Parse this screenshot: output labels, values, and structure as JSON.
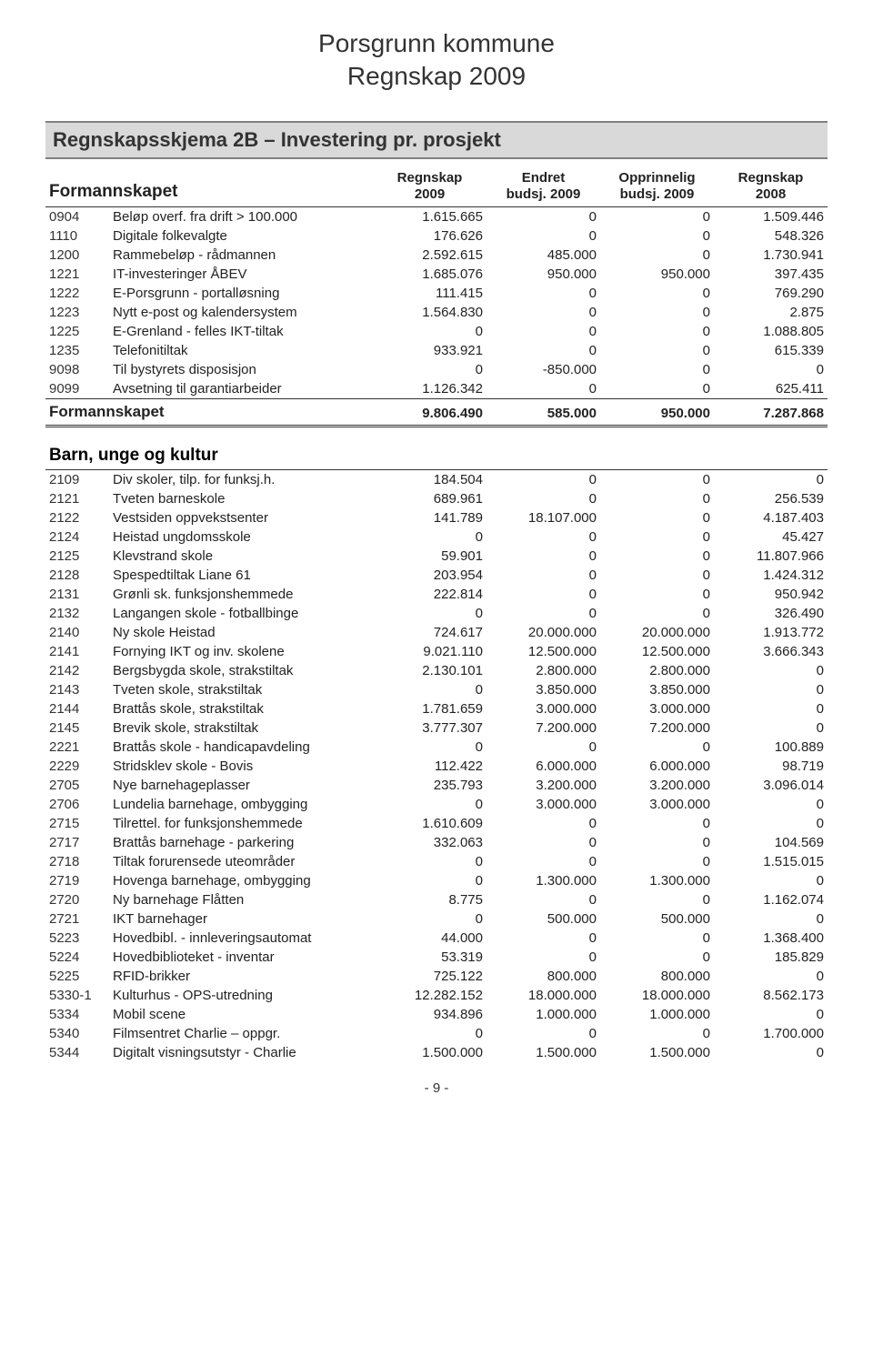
{
  "header": {
    "line1": "Porsgrunn kommune",
    "line2": "Regnskap 2009"
  },
  "schema_title": "Regnskapsskjema 2B – Investering pr. prosjekt",
  "columns": {
    "c1": "Regnskap",
    "c1b": "2009",
    "c2": "Endret",
    "c2b": "budsj. 2009",
    "c3": "Opprinnelig",
    "c3b": "budsj. 2009",
    "c4": "Regnskap",
    "c4b": "2008"
  },
  "section1": {
    "title": "Formannskapet",
    "rows": [
      {
        "code": "0904",
        "desc": "Beløp overf. fra drift  > 100.000",
        "v": [
          "1.615.665",
          "0",
          "0",
          "1.509.446"
        ]
      },
      {
        "code": "1110",
        "desc": "Digitale folkevalgte",
        "v": [
          "176.626",
          "0",
          "0",
          "548.326"
        ]
      },
      {
        "code": "1200",
        "desc": "Rammebeløp - rådmannen",
        "v": [
          "2.592.615",
          "485.000",
          "0",
          "1.730.941"
        ]
      },
      {
        "code": "1221",
        "desc": "IT-investeringer ÅBEV",
        "v": [
          "1.685.076",
          "950.000",
          "950.000",
          "397.435"
        ]
      },
      {
        "code": "1222",
        "desc": "E-Porsgrunn - portalløsning",
        "v": [
          "111.415",
          "0",
          "0",
          "769.290"
        ]
      },
      {
        "code": "1223",
        "desc": "Nytt e-post og kalendersystem",
        "v": [
          "1.564.830",
          "0",
          "0",
          "2.875"
        ]
      },
      {
        "code": "1225",
        "desc": "E-Grenland - felles IKT-tiltak",
        "v": [
          "0",
          "0",
          "0",
          "1.088.805"
        ]
      },
      {
        "code": "1235",
        "desc": "Telefonitiltak",
        "v": [
          "933.921",
          "0",
          "0",
          "615.339"
        ]
      },
      {
        "code": "9098",
        "desc": "Til bystyrets disposisjon",
        "v": [
          "0",
          "-850.000",
          "0",
          "0"
        ]
      },
      {
        "code": "9099",
        "desc": "Avsetning til garantiarbeider",
        "v": [
          "1.126.342",
          "0",
          "0",
          "625.411"
        ]
      }
    ],
    "total": {
      "label": "Formannskapet",
      "v": [
        "9.806.490",
        "585.000",
        "950.000",
        "7.287.868"
      ]
    }
  },
  "section2": {
    "title": "Barn, unge og kultur",
    "rows": [
      {
        "code": "2109",
        "desc": "Div skoler, tilp. for  funksj.h.",
        "v": [
          "184.504",
          "0",
          "0",
          "0"
        ]
      },
      {
        "code": "2121",
        "desc": "Tveten barneskole",
        "v": [
          "689.961",
          "0",
          "0",
          "256.539"
        ]
      },
      {
        "code": "2122",
        "desc": "Vestsiden oppvekstsenter",
        "v": [
          "141.789",
          "18.107.000",
          "0",
          "4.187.403"
        ]
      },
      {
        "code": "2124",
        "desc": "Heistad ungdomsskole",
        "v": [
          "0",
          "0",
          "0",
          "45.427"
        ]
      },
      {
        "code": "2125",
        "desc": "Klevstrand skole",
        "v": [
          "59.901",
          "0",
          "0",
          "11.807.966"
        ]
      },
      {
        "code": "2128",
        "desc": "Spespedtiltak Liane 61",
        "v": [
          "203.954",
          "0",
          "0",
          "1.424.312"
        ]
      },
      {
        "code": "2131",
        "desc": "Grønli sk. funksjonshemmede",
        "v": [
          "222.814",
          "0",
          "0",
          "950.942"
        ]
      },
      {
        "code": "2132",
        "desc": "Langangen skole - fotballbinge",
        "v": [
          "0",
          "0",
          "0",
          "326.490"
        ]
      },
      {
        "code": "2140",
        "desc": "Ny skole Heistad",
        "v": [
          "724.617",
          "20.000.000",
          "20.000.000",
          "1.913.772"
        ]
      },
      {
        "code": "2141",
        "desc": "Fornying IKT og inv. skolene",
        "v": [
          "9.021.110",
          "12.500.000",
          "12.500.000",
          "3.666.343"
        ]
      },
      {
        "code": "2142",
        "desc": "Bergsbygda skole, strakstiltak",
        "v": [
          "2.130.101",
          "2.800.000",
          "2.800.000",
          "0"
        ]
      },
      {
        "code": "2143",
        "desc": "Tveten skole, strakstiltak",
        "v": [
          "0",
          "3.850.000",
          "3.850.000",
          "0"
        ]
      },
      {
        "code": "2144",
        "desc": "Brattås skole, strakstiltak",
        "v": [
          "1.781.659",
          "3.000.000",
          "3.000.000",
          "0"
        ]
      },
      {
        "code": "2145",
        "desc": "Brevik skole, strakstiltak",
        "v": [
          "3.777.307",
          "7.200.000",
          "7.200.000",
          "0"
        ]
      },
      {
        "code": "2221",
        "desc": "Brattås skole - handicapavdeling",
        "v": [
          "0",
          "0",
          "0",
          "100.889"
        ]
      },
      {
        "code": "2229",
        "desc": "Stridsklev skole  - Bovis",
        "v": [
          "112.422",
          "6.000.000",
          "6.000.000",
          "98.719"
        ]
      },
      {
        "code": "2705",
        "desc": "Nye barnehageplasser",
        "v": [
          "235.793",
          "3.200.000",
          "3.200.000",
          "3.096.014"
        ]
      },
      {
        "code": "2706",
        "desc": "Lundelia barnehage, ombygging",
        "v": [
          "0",
          "3.000.000",
          "3.000.000",
          "0"
        ]
      },
      {
        "code": "2715",
        "desc": "Tilrettel. for funksjonshemmede",
        "v": [
          "1.610.609",
          "0",
          "0",
          "0"
        ]
      },
      {
        "code": "2717",
        "desc": "Brattås barnehage - parkering",
        "v": [
          "332.063",
          "0",
          "0",
          "104.569"
        ]
      },
      {
        "code": "2718",
        "desc": "Tiltak forurensede uteområder",
        "v": [
          "0",
          "0",
          "0",
          "1.515.015"
        ]
      },
      {
        "code": "2719",
        "desc": "Hovenga barnehage, ombygging",
        "v": [
          "0",
          "1.300.000",
          "1.300.000",
          "0"
        ]
      },
      {
        "code": "2720",
        "desc": "Ny barnehage Flåtten",
        "v": [
          "8.775",
          "0",
          "0",
          "1.162.074"
        ]
      },
      {
        "code": "2721",
        "desc": "IKT barnehager",
        "v": [
          "0",
          "500.000",
          "500.000",
          "0"
        ]
      },
      {
        "code": "5223",
        "desc": "Hovedbibl. - innleveringsautomat",
        "v": [
          "44.000",
          "0",
          "0",
          "1.368.400"
        ]
      },
      {
        "code": "5224",
        "desc": "Hovedbiblioteket - inventar",
        "v": [
          "53.319",
          "0",
          "0",
          "185.829"
        ]
      },
      {
        "code": "5225",
        "desc": "RFID-brikker",
        "v": [
          "725.122",
          "800.000",
          "800.000",
          "0"
        ]
      },
      {
        "code": "5330-1",
        "desc": "Kulturhus - OPS-utredning",
        "v": [
          "12.282.152",
          "18.000.000",
          "18.000.000",
          "8.562.173"
        ]
      },
      {
        "code": "5334",
        "desc": "Mobil scene",
        "v": [
          "934.896",
          "1.000.000",
          "1.000.000",
          "0"
        ]
      },
      {
        "code": "5340",
        "desc": "Filmsentret Charlie – oppgr.",
        "v": [
          "0",
          "0",
          "0",
          "1.700.000"
        ]
      },
      {
        "code": "5344",
        "desc": "Digitalt visningsutstyr - Charlie",
        "v": [
          "1.500.000",
          "1.500.000",
          "1.500.000",
          "0"
        ]
      }
    ]
  },
  "footer": "- 9 -"
}
